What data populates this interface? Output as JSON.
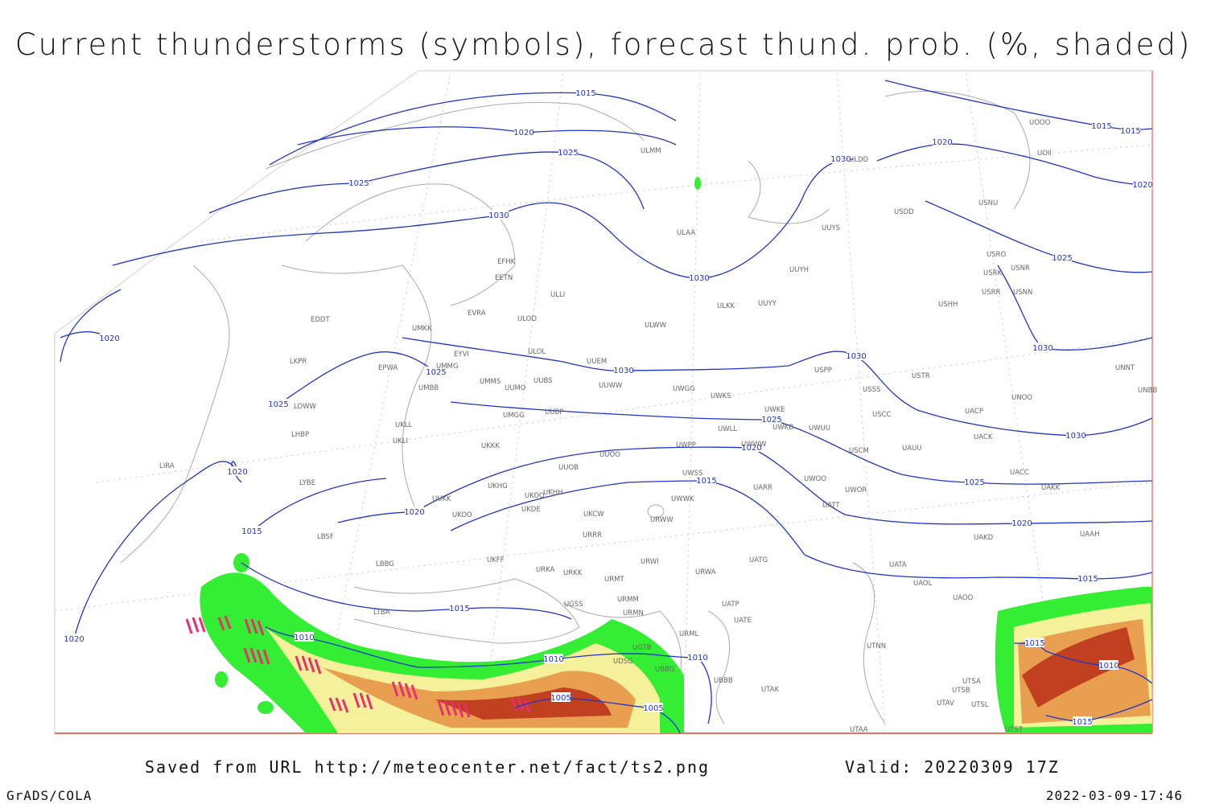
{
  "title": "Current thunderstorms (symbols), forecast thund. prob. (%, shaded)",
  "isobar_labels": [
    1015,
    1020,
    1025,
    1025,
    1030,
    1030,
    1020,
    1015,
    1015,
    1020,
    1025,
    1030,
    1030,
    1020,
    1030,
    1025,
    1030,
    1025,
    1025,
    1030,
    1020,
    1015,
    1025,
    1020,
    1020,
    1015,
    1020,
    1015,
    1015,
    1010,
    1020,
    1010,
    1010,
    1015,
    1010,
    1005,
    1005,
    1015
  ],
  "stations": [
    "ULMM",
    "ULDD",
    "UOOO",
    "UOII",
    "USNU",
    "USDD",
    "UUYS",
    "ULAA",
    "EFHK",
    "EETN",
    "USRO",
    "USRK",
    "USNR",
    "USRR",
    "USNN",
    "UUYH",
    "ULLI",
    "ULKK",
    "UUYY",
    "USHH",
    "EVRA",
    "ULOD",
    "EDDT",
    "UMKK",
    "ULWW",
    "UUEM",
    "UMMG",
    "EYVI",
    "EPWA",
    "ULOL",
    "LKPR",
    "USPP",
    "USTR",
    "UNNT",
    "UMMS",
    "UUMO",
    "UUBS",
    "UUWW",
    "UWGG",
    "UWKS",
    "USSS",
    "UNOO",
    "UNBB",
    "UMBB",
    "LOWW",
    "UWKE",
    "UWKB",
    "UWUU",
    "USCC",
    "UACP",
    "UMGG",
    "UUBP",
    "UKLL",
    "UKLI",
    "LHBP",
    "UWLL",
    "UWWW",
    "USCM",
    "UAUU",
    "UACK",
    "UKKK",
    "UUOO",
    "UWPP",
    "LIRA",
    "UUOB",
    "UWSS",
    "UACC",
    "LYBE",
    "UKHG",
    "UKOO",
    "UKHH",
    "UWOO",
    "UWOR",
    "UARR",
    "UAKK",
    "UUKK",
    "UKOO",
    "UKDE",
    "UKCW",
    "URWW",
    "UWWK",
    "UATT",
    "URRR",
    "UAKD",
    "UAAH",
    "LBSF",
    "UKFF",
    "URWI",
    "UATG",
    "LBBG",
    "URKA",
    "URKK",
    "URWA",
    "UATA",
    "URMT",
    "UAOL",
    "UAOO",
    "UGSS",
    "URMM",
    "UATP",
    "LTBA",
    "URMN",
    "UATE",
    "UGTB",
    "URML",
    "UTNN",
    "UDSG",
    "UBBG",
    "UBBB",
    "UTAK",
    "UTSA",
    "UTSB",
    "UTAV",
    "UTSL",
    "UTAA",
    "UTST"
  ],
  "footer": {
    "saved_from": "Saved from URL http://meteocenter.net/fact/ts2.png",
    "valid": "Valid: 20220309 17Z",
    "software": "GrADS/COLA",
    "timestamp": "2022-03-09-17:46"
  }
}
